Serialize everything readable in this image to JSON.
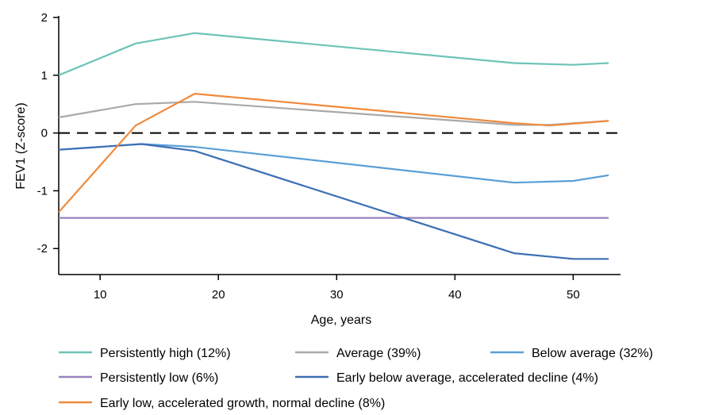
{
  "chart_data": {
    "type": "line",
    "title": "",
    "xlabel": "Age, years",
    "ylabel": "FEV1 (Z-score)",
    "xlim": [
      6.5,
      54
    ],
    "ylim": [
      -2.45,
      2
    ],
    "x_ticks": [
      10,
      20,
      30,
      40,
      50
    ],
    "y_ticks": [
      2,
      1,
      0,
      -1,
      -2
    ],
    "x_tick_labels": [
      "10",
      "20",
      "30",
      "40",
      "50"
    ],
    "y_tick_labels": [
      "2",
      "1",
      "0",
      "-1",
      "-2"
    ],
    "reference_line": {
      "y": 0,
      "style": "dashed"
    },
    "grid": false,
    "legend_position": "bottom",
    "series": [
      {
        "name": "Persistently high (12%)",
        "color": "#6cc3b8",
        "points": [
          [
            6.5,
            1.0
          ],
          [
            13,
            1.55
          ],
          [
            18,
            1.73
          ],
          [
            45,
            1.21
          ],
          [
            50,
            1.18
          ],
          [
            53,
            1.21
          ]
        ]
      },
      {
        "name": "Average (39%)",
        "color": "#a9a9a9",
        "points": [
          [
            6.5,
            0.27
          ],
          [
            13,
            0.5
          ],
          [
            18,
            0.54
          ],
          [
            45,
            0.14
          ],
          [
            48,
            0.14
          ],
          [
            53,
            0.21
          ]
        ]
      },
      {
        "name": "Below average (32%)",
        "color": "#5b9fd6",
        "points": [
          [
            6.5,
            -0.29
          ],
          [
            13.5,
            -0.19
          ],
          [
            18,
            -0.24
          ],
          [
            45,
            -0.86
          ],
          [
            50,
            -0.83
          ],
          [
            53,
            -0.73
          ]
        ]
      },
      {
        "name": "Persistently low (6%)",
        "color": "#9a82c0",
        "points": [
          [
            6.5,
            -1.47
          ],
          [
            53,
            -1.47
          ]
        ]
      },
      {
        "name": "Early below average, accelerated decline (4%)",
        "color": "#3d6fb4",
        "points": [
          [
            6.5,
            -0.29
          ],
          [
            13.5,
            -0.19
          ],
          [
            18,
            -0.31
          ],
          [
            45,
            -2.08
          ],
          [
            50,
            -2.18
          ],
          [
            53,
            -2.18
          ]
        ]
      },
      {
        "name": "Early low, accelerated growth, normal decline (8%)",
        "color": "#f08a3c",
        "points": [
          [
            6.5,
            -1.37
          ],
          [
            13,
            0.13
          ],
          [
            18,
            0.68
          ],
          [
            45,
            0.17
          ],
          [
            48,
            0.13
          ],
          [
            53,
            0.21
          ]
        ]
      }
    ]
  }
}
